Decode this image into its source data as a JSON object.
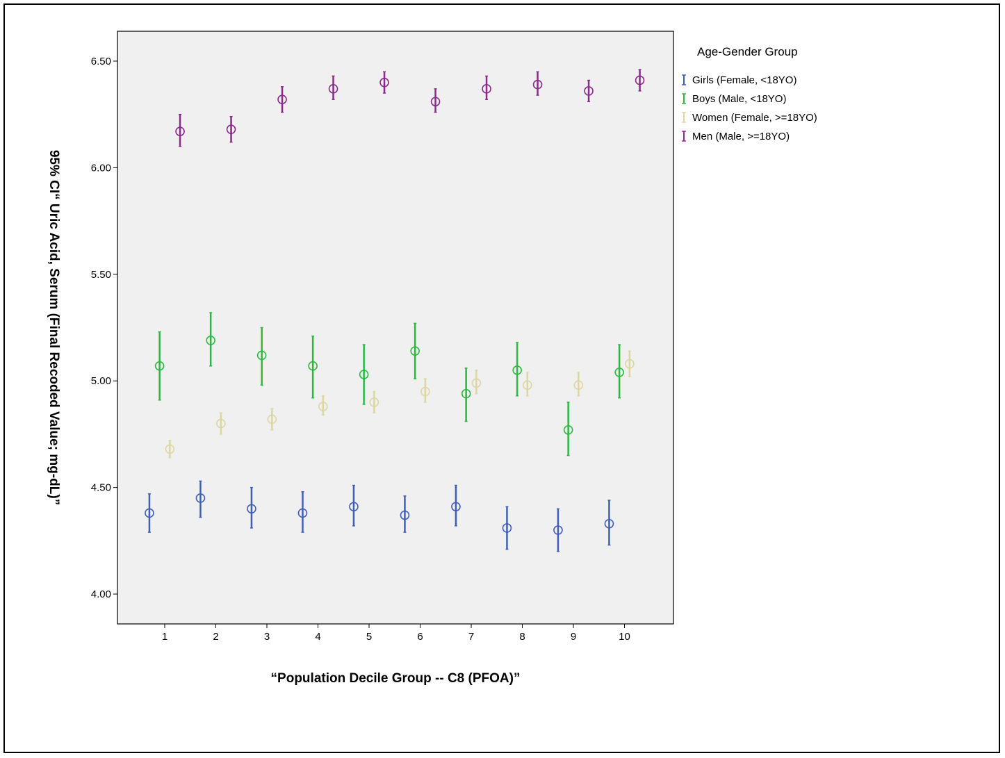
{
  "chart_data": {
    "type": "scatter",
    "subtype": "error-bar",
    "xlabel": "“Population Decile Group --  C8 (PFOA)”",
    "ylabel": "95% CI“ Uric Acid, Serum (Final Recoded Value; mg-dL)”",
    "categories": [
      "1",
      "2",
      "3",
      "4",
      "5",
      "6",
      "7",
      "8",
      "9",
      "10"
    ],
    "yticks": [
      "4.00",
      "4.50",
      "5.00",
      "5.50",
      "6.00",
      "6.50"
    ],
    "ylim": [
      3.86,
      6.64
    ],
    "grid": false,
    "legend": {
      "title": "Age-Gender Group",
      "placement": "top-right, outside plot"
    },
    "series": [
      {
        "name": "Girls (Female, <18YO)",
        "color": "#3f5eb8",
        "offset": -0.3,
        "mean": [
          4.38,
          4.45,
          4.4,
          4.38,
          4.41,
          4.37,
          4.41,
          4.31,
          4.3,
          4.33
        ],
        "lower": [
          4.29,
          4.36,
          4.31,
          4.29,
          4.32,
          4.29,
          4.32,
          4.21,
          4.2,
          4.23
        ],
        "upper": [
          4.47,
          4.53,
          4.5,
          4.48,
          4.51,
          4.46,
          4.51,
          4.41,
          4.4,
          4.44
        ]
      },
      {
        "name": "Boys (Male, <18YO)",
        "color": "#2cb83f",
        "offset": -0.1,
        "mean": [
          5.07,
          5.19,
          5.12,
          5.07,
          5.03,
          5.14,
          4.94,
          5.05,
          4.77,
          5.04
        ],
        "lower": [
          4.91,
          5.07,
          4.98,
          4.92,
          4.89,
          5.01,
          4.81,
          4.93,
          4.65,
          4.92
        ],
        "upper": [
          5.23,
          5.32,
          5.25,
          5.21,
          5.17,
          5.27,
          5.06,
          5.18,
          4.9,
          5.17
        ]
      },
      {
        "name": "Women (Female, >=18YO)",
        "color": "#dcd7a0",
        "offset": 0.1,
        "mean": [
          4.68,
          4.8,
          4.82,
          4.88,
          4.9,
          4.95,
          4.99,
          4.98,
          4.98,
          5.08
        ],
        "lower": [
          4.64,
          4.75,
          4.77,
          4.84,
          4.85,
          4.9,
          4.94,
          4.93,
          4.93,
          5.02
        ],
        "upper": [
          4.72,
          4.85,
          4.87,
          4.93,
          4.95,
          5.01,
          5.05,
          5.04,
          5.04,
          5.14
        ]
      },
      {
        "name": "Men (Male, >=18YO)",
        "color": "#8a2a8c",
        "offset": 0.3,
        "mean": [
          6.17,
          6.18,
          6.32,
          6.37,
          6.4,
          6.31,
          6.37,
          6.39,
          6.36,
          6.41
        ],
        "lower": [
          6.1,
          6.12,
          6.26,
          6.32,
          6.35,
          6.26,
          6.32,
          6.34,
          6.31,
          6.36
        ],
        "upper": [
          6.25,
          6.24,
          6.38,
          6.43,
          6.45,
          6.37,
          6.43,
          6.45,
          6.41,
          6.46
        ]
      }
    ]
  }
}
